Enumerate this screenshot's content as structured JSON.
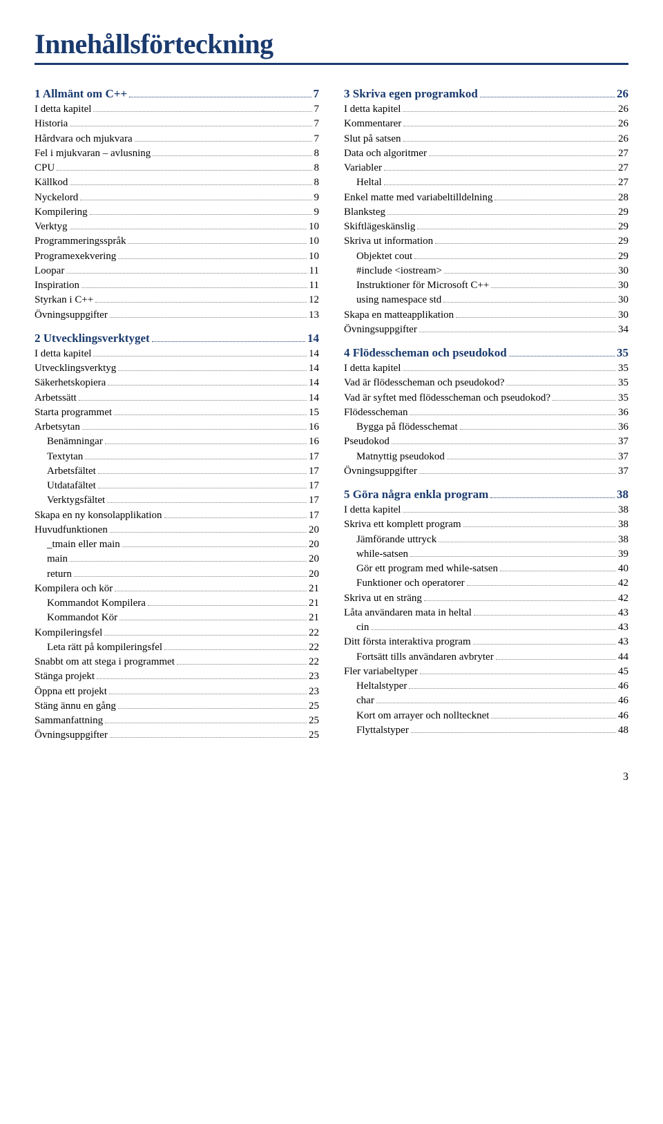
{
  "title": "Innehållsförteckning",
  "footer_page": "3",
  "columns": {
    "left": [
      {
        "type": "chapter",
        "label": "1 Allmänt om C++",
        "page": "7"
      },
      {
        "type": "entry",
        "level": 1,
        "label": "I detta kapitel",
        "page": "7"
      },
      {
        "type": "entry",
        "level": 1,
        "label": "Historia",
        "page": "7"
      },
      {
        "type": "entry",
        "level": 1,
        "label": "Hårdvara och mjukvara",
        "page": "7"
      },
      {
        "type": "entry",
        "level": 1,
        "label": "Fel i mjukvaran – avlusning",
        "page": "8"
      },
      {
        "type": "entry",
        "level": 1,
        "label": "CPU",
        "page": "8"
      },
      {
        "type": "entry",
        "level": 1,
        "label": "Källkod",
        "page": "8"
      },
      {
        "type": "entry",
        "level": 1,
        "label": "Nyckelord",
        "page": "9"
      },
      {
        "type": "entry",
        "level": 1,
        "label": "Kompilering",
        "page": "9"
      },
      {
        "type": "entry",
        "level": 1,
        "label": "Verktyg",
        "page": "10"
      },
      {
        "type": "entry",
        "level": 1,
        "label": "Programmeringsspråk",
        "page": "10"
      },
      {
        "type": "entry",
        "level": 1,
        "label": "Programexekvering",
        "page": "10"
      },
      {
        "type": "entry",
        "level": 1,
        "label": "Loopar",
        "page": "11"
      },
      {
        "type": "entry",
        "level": 1,
        "label": "Inspiration",
        "page": "11"
      },
      {
        "type": "entry",
        "level": 1,
        "label": "Styrkan i C++",
        "page": "12"
      },
      {
        "type": "entry",
        "level": 1,
        "label": "Övningsuppgifter",
        "page": "13"
      },
      {
        "type": "chapter",
        "label": "2 Utvecklingsverktyget",
        "page": "14"
      },
      {
        "type": "entry",
        "level": 1,
        "label": "I detta kapitel",
        "page": "14"
      },
      {
        "type": "entry",
        "level": 1,
        "label": "Utvecklingsverktyg",
        "page": "14"
      },
      {
        "type": "entry",
        "level": 1,
        "label": "Säkerhetskopiera",
        "page": "14"
      },
      {
        "type": "entry",
        "level": 1,
        "label": "Arbetssätt",
        "page": "14"
      },
      {
        "type": "entry",
        "level": 1,
        "label": "Starta programmet",
        "page": "15"
      },
      {
        "type": "entry",
        "level": 1,
        "label": "Arbetsytan",
        "page": "16"
      },
      {
        "type": "entry",
        "level": 2,
        "label": "Benämningar",
        "page": "16"
      },
      {
        "type": "entry",
        "level": 2,
        "label": "Textytan",
        "page": "17"
      },
      {
        "type": "entry",
        "level": 2,
        "label": "Arbetsfältet",
        "page": "17"
      },
      {
        "type": "entry",
        "level": 2,
        "label": "Utdatafältet",
        "page": "17"
      },
      {
        "type": "entry",
        "level": 2,
        "label": "Verktygsfältet",
        "page": "17"
      },
      {
        "type": "entry",
        "level": 1,
        "label": "Skapa en ny konsolapplikation",
        "page": "17"
      },
      {
        "type": "entry",
        "level": 1,
        "label": "Huvudfunktionen",
        "page": "20"
      },
      {
        "type": "entry",
        "level": 2,
        "label": "_tmain eller main",
        "page": "20"
      },
      {
        "type": "entry",
        "level": 2,
        "label": "main",
        "page": "20"
      },
      {
        "type": "entry",
        "level": 2,
        "label": "return",
        "page": "20"
      },
      {
        "type": "entry",
        "level": 1,
        "label": "Kompilera och kör",
        "page": "21"
      },
      {
        "type": "entry",
        "level": 2,
        "label": "Kommandot Kompilera",
        "page": "21"
      },
      {
        "type": "entry",
        "level": 2,
        "label": "Kommandot Kör",
        "page": "21"
      },
      {
        "type": "entry",
        "level": 1,
        "label": "Kompileringsfel",
        "page": "22"
      },
      {
        "type": "entry",
        "level": 2,
        "label": "Leta rätt på kompileringsfel",
        "page": "22"
      },
      {
        "type": "entry",
        "level": 1,
        "label": "Snabbt om att stega i programmet",
        "page": "22"
      },
      {
        "type": "entry",
        "level": 1,
        "label": "Stänga projekt",
        "page": "23"
      },
      {
        "type": "entry",
        "level": 1,
        "label": "Öppna ett projekt",
        "page": "23"
      },
      {
        "type": "entry",
        "level": 1,
        "label": "Stäng ännu en gång",
        "page": "25"
      },
      {
        "type": "entry",
        "level": 1,
        "label": "Sammanfattning",
        "page": "25"
      },
      {
        "type": "entry",
        "level": 1,
        "label": "Övningsuppgifter",
        "page": "25"
      }
    ],
    "right": [
      {
        "type": "chapter",
        "label": "3 Skriva egen programkod",
        "page": "26"
      },
      {
        "type": "entry",
        "level": 1,
        "label": "I detta kapitel",
        "page": "26"
      },
      {
        "type": "entry",
        "level": 1,
        "label": "Kommentarer",
        "page": "26"
      },
      {
        "type": "entry",
        "level": 1,
        "label": "Slut på satsen",
        "page": "26"
      },
      {
        "type": "entry",
        "level": 1,
        "label": "Data och algoritmer",
        "page": "27"
      },
      {
        "type": "entry",
        "level": 1,
        "label": "Variabler",
        "page": "27"
      },
      {
        "type": "entry",
        "level": 2,
        "label": "Heltal",
        "page": "27"
      },
      {
        "type": "entry",
        "level": 1,
        "label": "Enkel matte med variabeltilldelning",
        "page": "28"
      },
      {
        "type": "entry",
        "level": 1,
        "label": "Blanksteg",
        "page": "29"
      },
      {
        "type": "entry",
        "level": 1,
        "label": "Skiftlägeskänslig",
        "page": "29"
      },
      {
        "type": "entry",
        "level": 1,
        "label": "Skriva ut information",
        "page": "29"
      },
      {
        "type": "entry",
        "level": 2,
        "label": "Objektet cout",
        "page": "29"
      },
      {
        "type": "entry",
        "level": 2,
        "label": "#include <iostream>",
        "page": "30"
      },
      {
        "type": "entry",
        "level": 2,
        "label": "Instruktioner för Microsoft C++",
        "page": "30"
      },
      {
        "type": "entry",
        "level": 2,
        "label": "using namespace std",
        "page": "30"
      },
      {
        "type": "entry",
        "level": 1,
        "label": "Skapa en matteapplikation",
        "page": "30"
      },
      {
        "type": "entry",
        "level": 1,
        "label": "Övningsuppgifter",
        "page": "34"
      },
      {
        "type": "chapter",
        "label": "4 Flödesscheman och pseudokod",
        "page": "35"
      },
      {
        "type": "entry",
        "level": 1,
        "label": "I detta kapitel",
        "page": "35"
      },
      {
        "type": "entry",
        "level": 1,
        "label": "Vad är flödesscheman och pseudokod?",
        "page": "35"
      },
      {
        "type": "entry",
        "level": 1,
        "label": "Vad är syftet med flödesscheman och pseudokod?",
        "page": "35"
      },
      {
        "type": "entry",
        "level": 1,
        "label": "Flödesscheman",
        "page": "36"
      },
      {
        "type": "entry",
        "level": 2,
        "label": "Bygga på flödesschemat",
        "page": "36"
      },
      {
        "type": "entry",
        "level": 1,
        "label": "Pseudokod",
        "page": "37"
      },
      {
        "type": "entry",
        "level": 2,
        "label": "Matnyttig pseudokod",
        "page": "37"
      },
      {
        "type": "entry",
        "level": 1,
        "label": "Övningsuppgifter",
        "page": "37"
      },
      {
        "type": "chapter",
        "label": "5 Göra några enkla program",
        "page": "38"
      },
      {
        "type": "entry",
        "level": 1,
        "label": "I detta kapitel",
        "page": "38"
      },
      {
        "type": "entry",
        "level": 1,
        "label": "Skriva ett komplett program",
        "page": "38"
      },
      {
        "type": "entry",
        "level": 2,
        "label": "Jämförande uttryck",
        "page": "38"
      },
      {
        "type": "entry",
        "level": 2,
        "label": "while-satsen",
        "page": "39"
      },
      {
        "type": "entry",
        "level": 2,
        "label": "Gör ett program med while-satsen",
        "page": "40"
      },
      {
        "type": "entry",
        "level": 2,
        "label": "Funktioner och operatorer",
        "page": "42"
      },
      {
        "type": "entry",
        "level": 1,
        "label": "Skriva ut en sträng",
        "page": "42"
      },
      {
        "type": "entry",
        "level": 1,
        "label": "Låta användaren mata in heltal",
        "page": "43"
      },
      {
        "type": "entry",
        "level": 2,
        "label": "cin",
        "page": "43"
      },
      {
        "type": "entry",
        "level": 1,
        "label": "Ditt första interaktiva program",
        "page": "43"
      },
      {
        "type": "entry",
        "level": 2,
        "label": "Fortsätt tills användaren avbryter",
        "page": "44"
      },
      {
        "type": "entry",
        "level": 1,
        "label": "Fler variabeltyper",
        "page": "45"
      },
      {
        "type": "entry",
        "level": 2,
        "label": "Heltalstyper",
        "page": "46"
      },
      {
        "type": "entry",
        "level": 2,
        "label": "char",
        "page": "46"
      },
      {
        "type": "entry",
        "level": 2,
        "label": "Kort om arrayer och nolltecknet",
        "page": "46"
      },
      {
        "type": "entry",
        "level": 2,
        "label": "Flyttalstyper",
        "page": "48"
      }
    ]
  }
}
